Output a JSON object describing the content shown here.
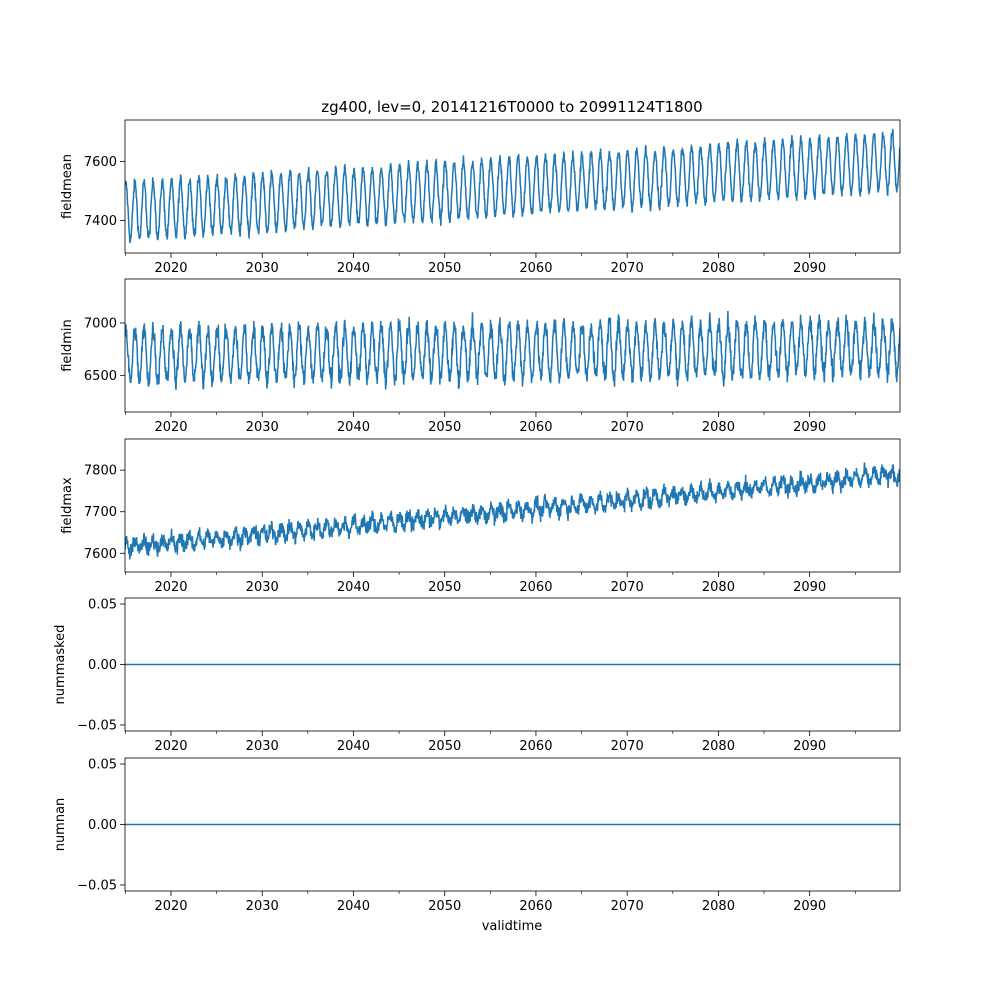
{
  "figure": {
    "title": "zg400, lev=0, 20141216T0000 to 20991124T1800",
    "xlabel": "validtime"
  },
  "colors": {
    "line": "#1f77b4",
    "axis": "#000000",
    "background": "#ffffff"
  },
  "chart_data": [
    {
      "type": "line",
      "ylabel": "fieldmean",
      "xlim": [
        2014.96,
        2099.9
      ],
      "ylim": [
        7290,
        7740
      ],
      "yticks": [
        7400,
        7600
      ],
      "xticks": [
        2020,
        2030,
        2040,
        2050,
        2060,
        2070,
        2080,
        2090
      ],
      "series_summary": {
        "start_mean": 7430,
        "end_mean": 7600,
        "seasonal_amplitude": 95,
        "noise": 18
      }
    },
    {
      "type": "line",
      "ylabel": "fieldmin",
      "xlim": [
        2014.96,
        2099.9
      ],
      "ylim": [
        6150,
        7420
      ],
      "yticks": [
        6500,
        7000
      ],
      "xticks": [
        2020,
        2030,
        2040,
        2050,
        2060,
        2070,
        2080,
        2090
      ],
      "series_summary": {
        "start_mean": 6690,
        "end_mean": 6770,
        "seasonal_amplitude": 250,
        "noise": 90
      }
    },
    {
      "type": "line",
      "ylabel": "fieldmax",
      "xlim": [
        2014.96,
        2099.9
      ],
      "ylim": [
        7555,
        7875
      ],
      "yticks": [
        7600,
        7700,
        7800
      ],
      "xticks": [
        2020,
        2030,
        2040,
        2050,
        2060,
        2070,
        2080,
        2090
      ],
      "series_summary": {
        "start_mean": 7615,
        "end_mean": 7790,
        "seasonal_amplitude": 14,
        "noise": 18
      }
    },
    {
      "type": "line",
      "ylabel": "nummasked",
      "xlim": [
        2014.96,
        2099.9
      ],
      "ylim": [
        -0.055,
        0.055
      ],
      "yticks": [
        -0.05,
        0.0,
        0.05
      ],
      "ytick_labels": [
        "−0.05",
        "0.00",
        "0.05"
      ],
      "xticks": [
        2020,
        2030,
        2040,
        2050,
        2060,
        2070,
        2080,
        2090
      ],
      "constant_value": 0
    },
    {
      "type": "line",
      "ylabel": "numnan",
      "xlim": [
        2014.96,
        2099.9
      ],
      "ylim": [
        -0.055,
        0.055
      ],
      "yticks": [
        -0.05,
        0.0,
        0.05
      ],
      "ytick_labels": [
        "−0.05",
        "0.00",
        "0.05"
      ],
      "xticks": [
        2020,
        2030,
        2040,
        2050,
        2060,
        2070,
        2080,
        2090
      ],
      "constant_value": 0
    }
  ]
}
